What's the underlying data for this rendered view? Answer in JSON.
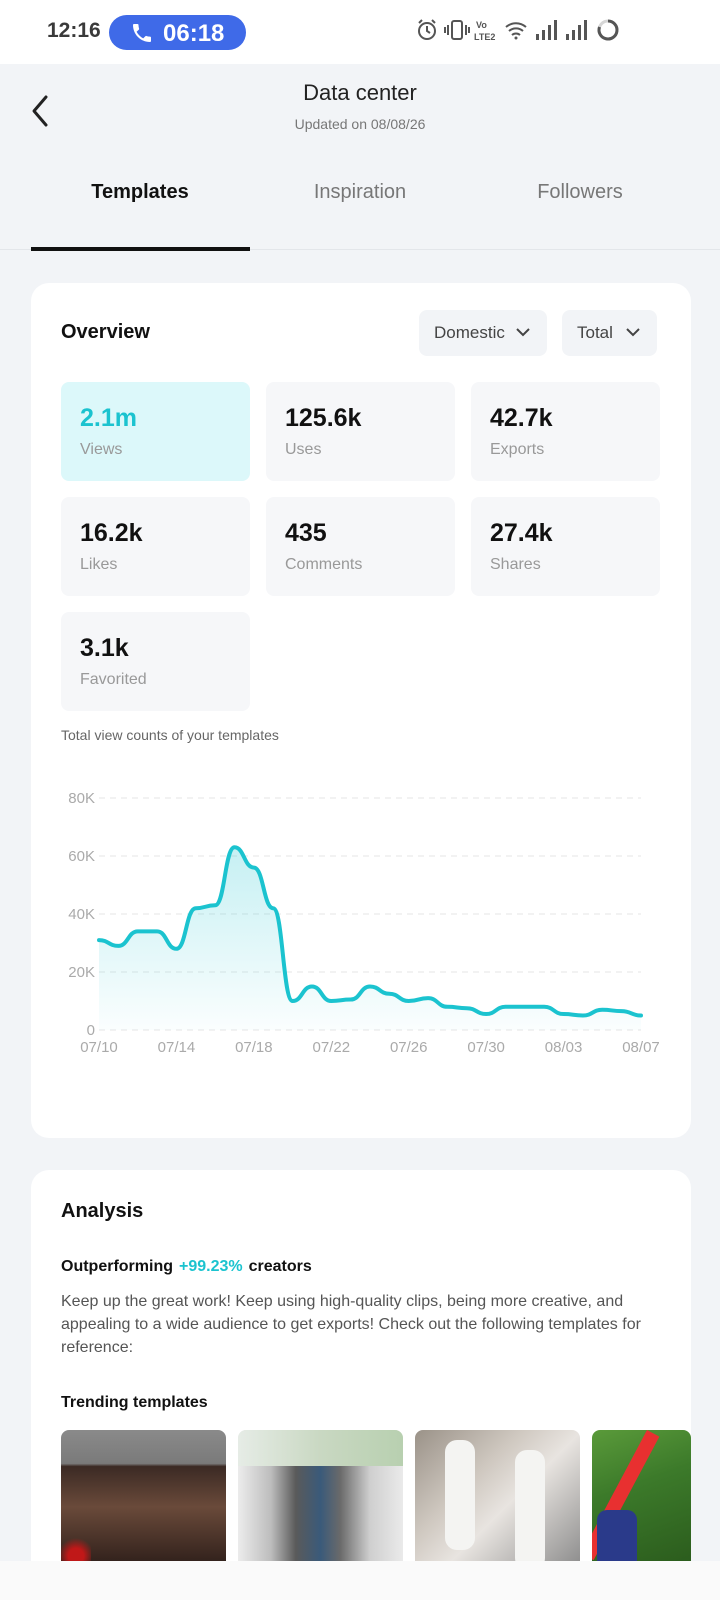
{
  "status_bar": {
    "time": "12:16",
    "call_time": "06:18",
    "icons": [
      "alarm-icon",
      "vibrate-icon",
      "volte-icon",
      "wifi-icon",
      "signal-icon",
      "signal-icon",
      "battery-icon"
    ]
  },
  "header": {
    "title": "Data center",
    "updated": "Updated on 08/08/26",
    "tabs": [
      {
        "label": "Templates",
        "active": true
      },
      {
        "label": "Inspiration",
        "active": false
      },
      {
        "label": "Followers",
        "active": false
      }
    ]
  },
  "overview": {
    "title": "Overview",
    "region_filter": "Domestic",
    "period_filter": "Total",
    "metrics": [
      {
        "value": "2.1m",
        "label": "Views",
        "highlighted": true
      },
      {
        "value": "125.6k",
        "label": "Uses"
      },
      {
        "value": "42.7k",
        "label": "Exports"
      },
      {
        "value": "16.2k",
        "label": "Likes"
      },
      {
        "value": "435",
        "label": "Comments"
      },
      {
        "value": "27.4k",
        "label": "Shares"
      },
      {
        "value": "3.1k",
        "label": "Favorited"
      }
    ],
    "chart_caption": "Total view counts of your templates"
  },
  "chart_data": {
    "type": "area",
    "title": "Total view counts of your templates",
    "x": [
      "07/10",
      "07/11",
      "07/12",
      "07/13",
      "07/14",
      "07/15",
      "07/16",
      "07/17",
      "07/18",
      "07/19",
      "07/20",
      "07/21",
      "07/22",
      "07/23",
      "07/24",
      "07/25",
      "07/26",
      "07/27",
      "07/28",
      "07/29",
      "07/30",
      "07/31",
      "08/01",
      "08/02",
      "08/03",
      "08/04",
      "08/05",
      "08/06",
      "08/07"
    ],
    "y": [
      31000,
      29000,
      34000,
      34000,
      28000,
      42000,
      43000,
      63000,
      56000,
      42000,
      10000,
      15000,
      10000,
      10500,
      15000,
      12500,
      10000,
      11000,
      8000,
      7500,
      5500,
      8000,
      8000,
      8000,
      5500,
      5000,
      7000,
      6500,
      5000
    ],
    "x_ticks": [
      "07/10",
      "07/14",
      "07/18",
      "07/22",
      "07/26",
      "07/30",
      "08/03",
      "08/07"
    ],
    "y_ticks": [
      "0",
      "20K",
      "40K",
      "60K",
      "80K"
    ],
    "ylim": [
      0,
      80000
    ],
    "grid": true,
    "color": "#1bc3cf"
  },
  "analysis": {
    "title": "Analysis",
    "outperform_prefix": "Outperforming",
    "outperform_pct": "+99.23%",
    "outperform_suffix": "creators",
    "body": "Keep up the great work! Keep using high-quality clips, being more creative, and appealing to a wide audience to get exports! Check out the following templates for reference:",
    "trending_title": "Trending templates"
  },
  "colors": {
    "accent": "#1bc3cf",
    "call_pill": "#3f6ae8"
  }
}
